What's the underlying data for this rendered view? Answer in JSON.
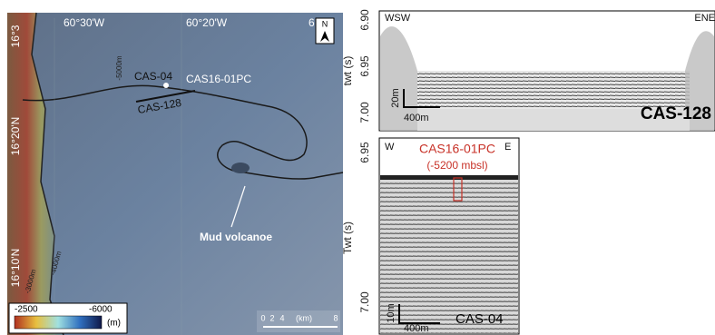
{
  "map": {
    "lon_labels": [
      "60°30'W",
      "60°20'W",
      "6"
    ],
    "lat_labels": [
      "16°3",
      "16°20'N",
      "16°10'N"
    ],
    "north": "N",
    "sites": {
      "core_short": "CAS-04",
      "core": "CAS16-01PC",
      "line": "CAS-128"
    },
    "contours": [
      "-5000m",
      "-3000m",
      "-4000m"
    ],
    "feature": "Mud volcanoe",
    "legend": {
      "min": "-2500",
      "max": "-6000",
      "unit": "(m)"
    },
    "scale": {
      "ticks": [
        "0",
        "2",
        "4",
        "8"
      ],
      "unit": "(km)"
    }
  },
  "profile_top": {
    "left": "WSW",
    "right": "ENE",
    "axis_label": "twt (s)",
    "ticks": [
      "6.90",
      "6.95",
      "7.00"
    ],
    "vscale": "20m",
    "hscale": "400m",
    "name": "CAS-128"
  },
  "profile_bottom": {
    "left": "W",
    "right": "E",
    "core": "CAS16-01PC",
    "depth": "(-5200 mbsl)",
    "axis_label": "Twt (s)",
    "ticks": [
      "6.95",
      "7.00"
    ],
    "vscale": "10m",
    "hscale": "400m",
    "name": "CAS-04"
  }
}
